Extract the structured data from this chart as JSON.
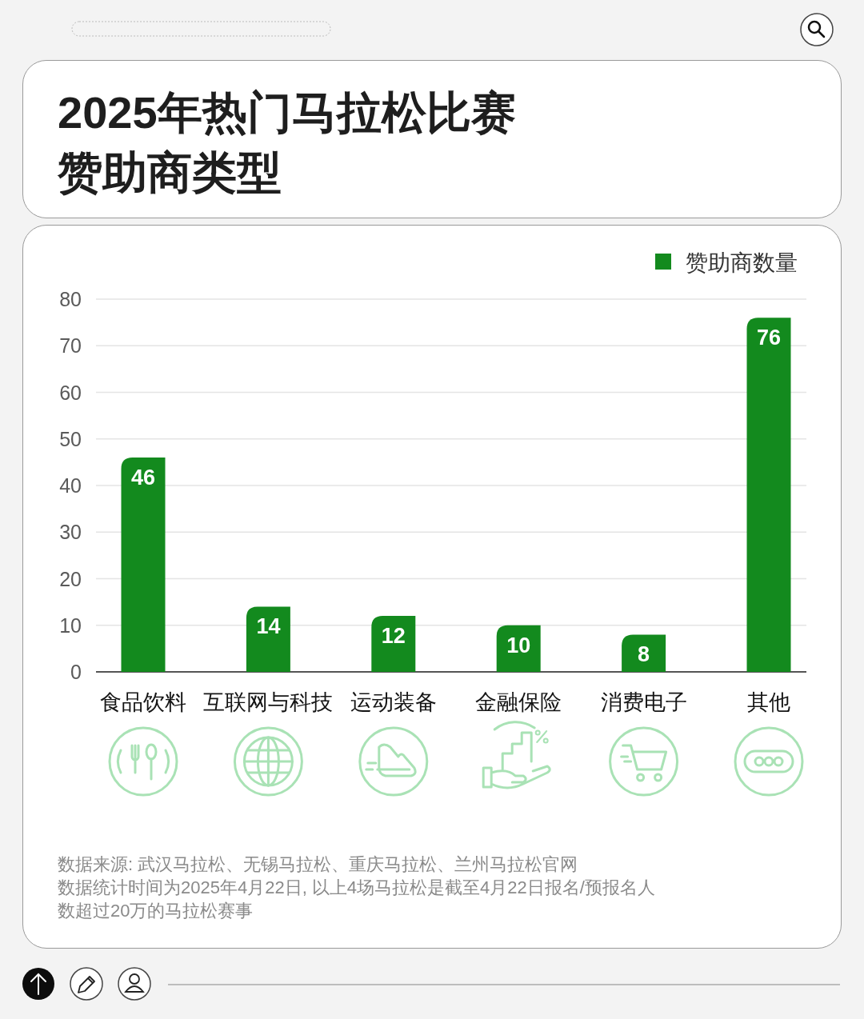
{
  "chart_data": {
    "type": "bar",
    "title": "2025年热门马拉松比赛赞助商类型",
    "categories": [
      "食品饮料",
      "互联网与科技",
      "运动装备",
      "金融保险",
      "消费电子",
      "其他"
    ],
    "series": [
      {
        "name": "赞助商数量",
        "color": "#138a1e",
        "values": [
          46,
          14,
          12,
          10,
          8,
          76
        ]
      }
    ],
    "ylim": [
      0,
      80
    ],
    "yticks": [
      0,
      10,
      20,
      30,
      40,
      50,
      60,
      70,
      80
    ],
    "grid": "y",
    "legend": "top right",
    "data_labels": true,
    "annotations": [
      "数据来源: 武汉马拉松、无锡马拉松、重庆马拉松、兰州马拉松官网",
      "数据统计时间为2025年4月22日, 以上4场马拉松是截至4月22日报名/预报名人数超过20万的马拉松赛事"
    ]
  }
}
